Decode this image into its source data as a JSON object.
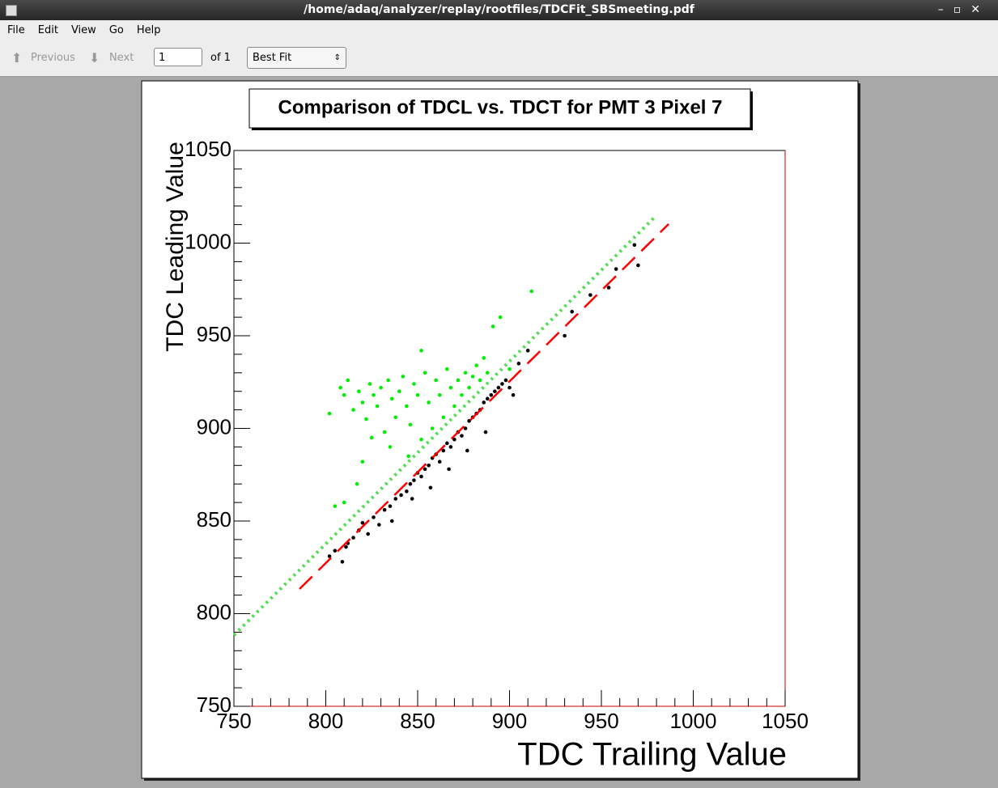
{
  "window": {
    "title": "/home/adaq/analyzer/replay/rootfiles/TDCFit_SBSmeeting.pdf"
  },
  "menu": [
    "File",
    "Edit",
    "View",
    "Go",
    "Help"
  ],
  "toolbar": {
    "previous": "Previous",
    "next": "Next",
    "page": "1",
    "page_count": "of 1",
    "zoom": "Best Fit"
  },
  "chart_data": {
    "type": "scatter",
    "title": "Comparison of TDCL vs. TDCT for PMT 3 Pixel 7",
    "x_label": "TDC Trailing Value",
    "y_label": "TDC Leading Value",
    "xlim": [
      750,
      1050
    ],
    "ylim": [
      750,
      1050
    ],
    "xticks": [
      750,
      800,
      850,
      900,
      950,
      1000,
      1050
    ],
    "yticks": [
      750,
      800,
      850,
      900,
      950,
      1000,
      1050
    ],
    "series": [
      {
        "color": "#00ee00",
        "x": [
          802,
          805,
          808,
          810,
          812,
          815,
          818,
          820,
          822,
          824,
          826,
          828,
          830,
          832,
          834,
          836,
          838,
          840,
          842,
          844,
          846,
          848,
          850,
          852,
          854,
          856,
          858,
          860,
          862,
          864,
          866,
          868,
          870,
          872,
          874,
          876,
          878,
          880,
          882,
          884,
          886,
          888,
          891,
          895,
          900,
          912,
          852,
          820,
          835,
          845,
          825,
          810,
          817
        ],
        "values": [
          908,
          858,
          922,
          918,
          926,
          910,
          920,
          914,
          905,
          924,
          918,
          912,
          922,
          898,
          926,
          916,
          906,
          920,
          928,
          912,
          902,
          924,
          918,
          894,
          930,
          914,
          900,
          926,
          918,
          906,
          932,
          922,
          912,
          926,
          918,
          930,
          922,
          928,
          934,
          926,
          938,
          930,
          955,
          960,
          932,
          974,
          942,
          882,
          890,
          885,
          895,
          860,
          870
        ]
      },
      {
        "color": "#000000",
        "x": [
          802,
          805,
          809,
          811,
          815,
          818,
          820,
          823,
          826,
          829,
          832,
          835,
          838,
          841,
          844,
          846,
          848,
          850,
          852,
          854,
          856,
          858,
          860,
          862,
          864,
          866,
          868,
          870,
          872,
          874,
          876,
          878,
          880,
          882,
          884,
          886,
          888,
          890,
          892,
          894,
          896,
          898,
          900,
          902,
          905,
          910,
          930,
          934,
          944,
          954,
          958,
          968,
          970,
          847,
          857,
          867,
          877,
          887,
          812,
          836
        ],
        "values": [
          831,
          834,
          828,
          836,
          841,
          845,
          849,
          843,
          852,
          848,
          856,
          858,
          862,
          864,
          866,
          870,
          872,
          876,
          874,
          878,
          880,
          884,
          886,
          882,
          888,
          892,
          890,
          894,
          898,
          896,
          900,
          904,
          906,
          908,
          910,
          914,
          916,
          918,
          920,
          922,
          924,
          926,
          922,
          918,
          935,
          942,
          950,
          963,
          972,
          976,
          986,
          999,
          988,
          862,
          868,
          878,
          888,
          898,
          838,
          850
        ]
      }
    ],
    "lines": [
      {
        "color": "#ff0000",
        "style": "dashed",
        "x": [
          785.7,
          986.6
        ],
        "y": [
          813.3,
          1010.3
        ]
      },
      {
        "color": "#55dd55",
        "style": "dotted",
        "x": [
          750,
          980
        ],
        "y": [
          788.4,
          1015
        ]
      }
    ]
  }
}
